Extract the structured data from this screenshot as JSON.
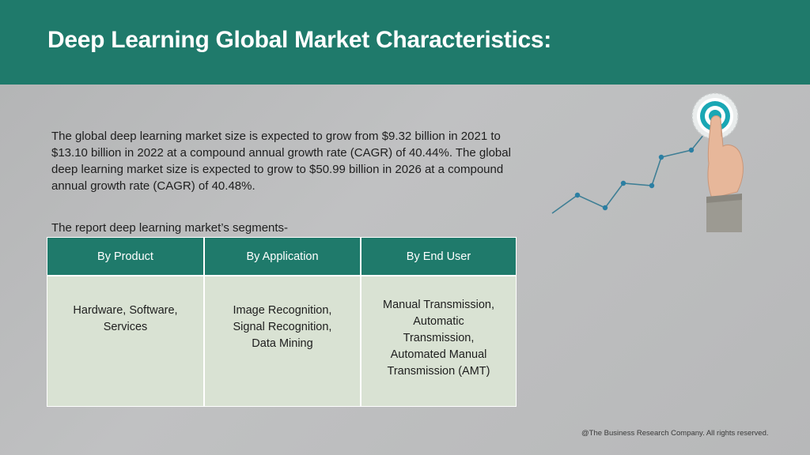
{
  "header": {
    "title": "Deep Learning Global Market Characteristics:",
    "color": "#1f7a6b"
  },
  "intro": {
    "text": "The global deep learning market size is expected to grow from $9.32 billion in 2021 to $13.10 billion in 2022 at a compound annual growth rate (CAGR) of 40.44%. The global deep learning market size is expected to grow to $50.99 billion in 2026 at a compound annual growth rate (CAGR) of 40.48%."
  },
  "segments": {
    "label": "The report deep learning market’s segments-",
    "columns": [
      "By Product",
      "By Application",
      "By End User"
    ],
    "rows": [
      [
        "Hardware, Software,\nServices",
        "Image Recognition,\nSignal Recognition,\nData Mining",
        "Manual Transmission,\nAutomatic\nTransmission,\nAutomated Manual\nTransmission (AMT)"
      ]
    ],
    "header_color": "#1f7a6b",
    "body_color": "#d9e2d3"
  },
  "illustration": {
    "icons": [
      "growth-line-chart",
      "target-icon",
      "pointing-hand"
    ]
  },
  "footer": {
    "text": "@The Business Research Company. All rights reserved."
  }
}
